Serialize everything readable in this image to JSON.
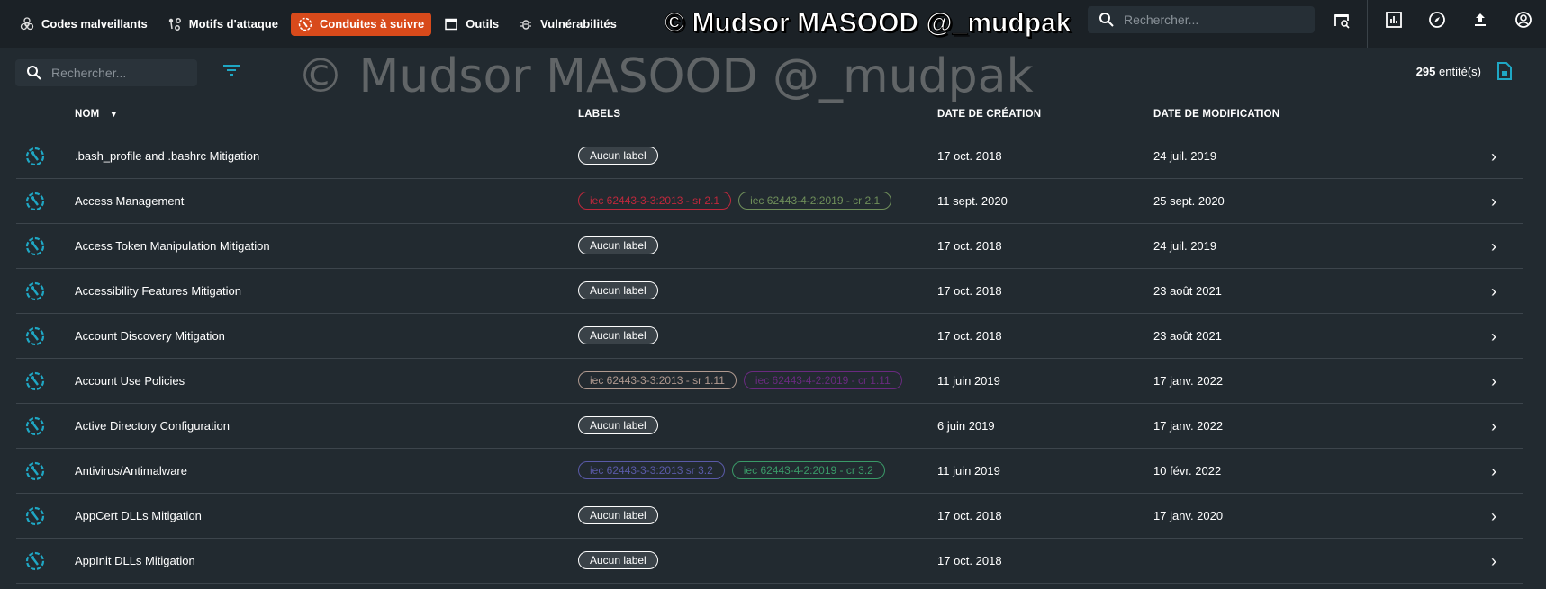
{
  "nav": {
    "items": [
      {
        "label": "Codes malveillants",
        "icon": "biohazard-icon"
      },
      {
        "label": "Motifs d'attaque",
        "icon": "attack-pattern-icon"
      },
      {
        "label": "Conduites à suivre",
        "icon": "course-of-action-icon",
        "active": true
      },
      {
        "label": "Outils",
        "icon": "window-icon"
      },
      {
        "label": "Vulnérabilités",
        "icon": "bug-icon"
      }
    ],
    "search_placeholder": "Rechercher..."
  },
  "toolbar": {
    "search_placeholder": "Rechercher...",
    "count": "295",
    "count_suffix": "entité(s)"
  },
  "table": {
    "headers": {
      "name": "NOM",
      "labels": "LABELS",
      "created": "DATE DE CRÉATION",
      "modified": "DATE DE MODIFICATION"
    },
    "rows": [
      {
        "name": ".bash_profile and .bashrc Mitigation",
        "labels": [
          {
            "text": "Aucun label",
            "color": "#ffffff"
          }
        ],
        "created": "17 oct. 2018",
        "modified": "24 juil. 2019"
      },
      {
        "name": "Access Management",
        "labels": [
          {
            "text": "iec 62443-3-3:2013 - sr 2.1",
            "color": "#c0283c"
          },
          {
            "text": "iec 62443-4-2:2019 - cr 2.1",
            "color": "#6f8f5a"
          }
        ],
        "created": "11 sept. 2020",
        "modified": "25 sept. 2020"
      },
      {
        "name": "Access Token Manipulation Mitigation",
        "labels": [
          {
            "text": "Aucun label",
            "color": "#ffffff"
          }
        ],
        "created": "17 oct. 2018",
        "modified": "24 juil. 2019"
      },
      {
        "name": "Accessibility Features Mitigation",
        "labels": [
          {
            "text": "Aucun label",
            "color": "#ffffff"
          }
        ],
        "created": "17 oct. 2018",
        "modified": "23 août 2021"
      },
      {
        "name": "Account Discovery Mitigation",
        "labels": [
          {
            "text": "Aucun label",
            "color": "#ffffff"
          }
        ],
        "created": "17 oct. 2018",
        "modified": "23 août 2021"
      },
      {
        "name": "Account Use Policies",
        "labels": [
          {
            "text": "iec 62443-3-3:2013 - sr 1.11",
            "color": "#b09a90"
          },
          {
            "text": "iec 62443-4-2:2019 - cr 1.11",
            "color": "#6a2a80"
          }
        ],
        "created": "11 juin 2019",
        "modified": "17 janv. 2022"
      },
      {
        "name": "Active Directory Configuration",
        "labels": [
          {
            "text": "Aucun label",
            "color": "#ffffff"
          }
        ],
        "created": "6 juin 2019",
        "modified": "17 janv. 2022"
      },
      {
        "name": "Antivirus/Antimalware",
        "labels": [
          {
            "text": "iec 62443-3-3:2013 sr 3.2",
            "color": "#5a5aa8"
          },
          {
            "text": "iec 62443-4-2:2019 - cr 3.2",
            "color": "#3a9a68"
          }
        ],
        "created": "11 juin 2019",
        "modified": "10 févr. 2022"
      },
      {
        "name": "AppCert DLLs Mitigation",
        "labels": [
          {
            "text": "Aucun label",
            "color": "#ffffff"
          }
        ],
        "created": "17 oct. 2018",
        "modified": "17 janv. 2020"
      },
      {
        "name": "AppInit DLLs Mitigation",
        "labels": [
          {
            "text": "Aucun label",
            "color": "#ffffff"
          }
        ],
        "created": "17 oct. 2018",
        "modified": ""
      }
    ]
  },
  "watermark": "© Mudsor MASOOD @_mudpak",
  "colors": {
    "accent": "#d84a1b",
    "icon": "#1fa7c4"
  }
}
